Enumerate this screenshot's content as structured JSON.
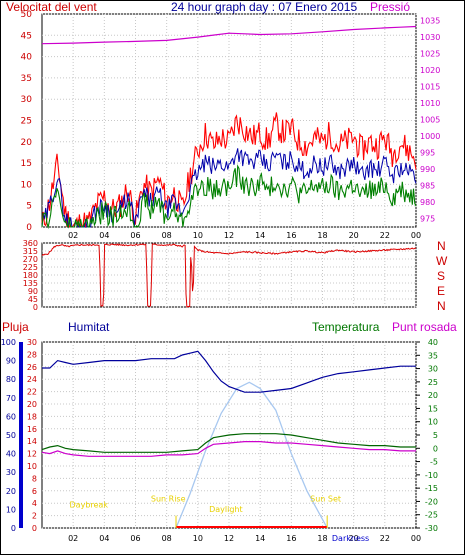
{
  "header": {
    "left_title": "Velocitat del vent",
    "center_title": "24 hour graph day : 07 Enero 2015",
    "right_title": "Pressió"
  },
  "direction_labels": [
    "N",
    "W",
    "S",
    "E",
    "N"
  ],
  "lower_labels": {
    "pluja": "Pluja",
    "humitat": "Humitat",
    "temperatura": "Temperatura",
    "punt_rosada": "Punt rosada"
  },
  "sun_labels": {
    "daybreak": "Daybreak",
    "sunrise": "Sun Rise",
    "daylight": "Daylight",
    "sunset": "Sun Set",
    "darkness": "Darkness"
  },
  "colors": {
    "wind_gust": "#ff0000",
    "wind_avg": "#0000aa",
    "wind_low": "#008000",
    "pressure": "#cc00cc",
    "direction": "#dd0000",
    "humidity": "#00009c",
    "temperature": "#006400",
    "dewpoint": "#cc00cc",
    "solar": "#a8c8f0",
    "rain": "#ff0000",
    "sun_text": "#e8d000"
  },
  "chart_data": [
    {
      "type": "line",
      "name": "wind_and_pressure",
      "x_ticks": [
        "02",
        "04",
        "06",
        "08",
        "10",
        "12",
        "14",
        "16",
        "18",
        "20",
        "22",
        "00"
      ],
      "x_hours": [
        2,
        4,
        6,
        8,
        10,
        12,
        14,
        16,
        18,
        20,
        22,
        24
      ],
      "y_left_ticks": [
        0,
        5,
        10,
        15,
        20,
        25,
        30,
        35,
        40,
        45,
        50
      ],
      "y_left_range": [
        0,
        50
      ],
      "y_right_ticks": [
        975,
        980,
        985,
        990,
        995,
        1000,
        1005,
        1010,
        1015,
        1020,
        1025,
        1030,
        1035
      ],
      "y_right_range": [
        972.5,
        1037
      ],
      "series": [
        {
          "key": "gust",
          "axis": "left",
          "x": [
            0,
            0.5,
            1,
            1.5,
            2,
            2.5,
            3,
            3.5,
            4,
            4.5,
            5,
            5.5,
            6,
            6.5,
            7,
            7.5,
            8,
            8.5,
            9,
            9.5,
            10,
            10.5,
            11,
            11.5,
            12,
            12.5,
            13,
            13.5,
            14,
            14.5,
            15,
            15.5,
            16,
            16.5,
            17,
            17.5,
            18,
            18.5,
            19,
            19.5,
            20,
            20.5,
            21,
            21.5,
            22,
            22.5,
            23,
            23.5,
            24
          ],
          "y": [
            0,
            6,
            15,
            3,
            0,
            1,
            1,
            5,
            7,
            4,
            5,
            9,
            2,
            10,
            8,
            11,
            6,
            8,
            4,
            12,
            18,
            22,
            19,
            21,
            20,
            25,
            23,
            21,
            22,
            20,
            24,
            22,
            23,
            20,
            19,
            21,
            20,
            22,
            19,
            20,
            21,
            18,
            20,
            19,
            21,
            17,
            20,
            18,
            16
          ]
        },
        {
          "key": "avg",
          "axis": "left",
          "x": [
            0,
            0.5,
            1,
            1.5,
            2,
            2.5,
            3,
            3.5,
            4,
            4.5,
            5,
            5.5,
            6,
            6.5,
            7,
            7.5,
            8,
            8.5,
            9,
            9.5,
            10,
            10.5,
            11,
            11.5,
            12,
            12.5,
            13,
            13.5,
            14,
            14.5,
            15,
            15.5,
            16,
            16.5,
            17,
            17.5,
            18,
            18.5,
            19,
            19.5,
            20,
            20.5,
            21,
            21.5,
            22,
            22.5,
            23,
            23.5,
            24
          ],
          "y": [
            0,
            5,
            12,
            2,
            0,
            0,
            0,
            4,
            5,
            3,
            4,
            7,
            1,
            8,
            6,
            8,
            4,
            6,
            3,
            9,
            13,
            15,
            14,
            15,
            14,
            18,
            16,
            15,
            16,
            14,
            17,
            15,
            16,
            14,
            13,
            15,
            14,
            15,
            13,
            14,
            15,
            12,
            14,
            13,
            15,
            12,
            14,
            13,
            12
          ]
        },
        {
          "key": "low",
          "axis": "left",
          "x": [
            0,
            0.5,
            1,
            1.5,
            2,
            2.5,
            3,
            3.5,
            4,
            4.5,
            5,
            5.5,
            6,
            6.5,
            7,
            7.5,
            8,
            8.5,
            9,
            9.5,
            10,
            10.5,
            11,
            11.5,
            12,
            12.5,
            13,
            13.5,
            14,
            14.5,
            15,
            15.5,
            16,
            16.5,
            17,
            17.5,
            18,
            18.5,
            19,
            19.5,
            20,
            20.5,
            21,
            21.5,
            22,
            22.5,
            23,
            23.5,
            24
          ],
          "y": [
            0,
            3,
            9,
            0,
            0,
            0,
            0,
            2,
            4,
            2,
            3,
            5,
            0,
            6,
            4,
            6,
            2,
            4,
            1,
            6,
            9,
            10,
            8,
            10,
            9,
            12,
            10,
            9,
            11,
            8,
            11,
            9,
            10,
            8,
            8,
            10,
            9,
            10,
            8,
            9,
            10,
            7,
            9,
            8,
            10,
            7,
            9,
            8,
            7
          ]
        },
        {
          "key": "pressure",
          "axis": "right",
          "x": [
            0,
            2,
            4,
            6,
            8,
            10,
            11,
            12,
            13,
            14,
            16,
            18,
            20,
            22,
            23,
            24
          ],
          "y": [
            1028.0,
            1028.2,
            1028.5,
            1028.7,
            1029.0,
            1030.0,
            1030.6,
            1031.2,
            1031.0,
            1030.8,
            1031.0,
            1031.6,
            1032.3,
            1032.8,
            1033.0,
            1033.2
          ]
        }
      ]
    },
    {
      "type": "line",
      "name": "wind_direction",
      "y_ticks": [
        0,
        45,
        90,
        135,
        180,
        225,
        270,
        315,
        360
      ],
      "y_range": [
        0,
        360
      ],
      "x": [
        0,
        0.4,
        0.8,
        1.2,
        1.6,
        2,
        2.5,
        3,
        3.5,
        3.7,
        3.75,
        3.95,
        4.0,
        4.5,
        5,
        5.5,
        6,
        6.5,
        6.7,
        6.75,
        7.0,
        7.05,
        7.5,
        8,
        8.5,
        9,
        9.2,
        9.25,
        9.5,
        9.55,
        9.7,
        9.75,
        10,
        10.5,
        11,
        12,
        13,
        14,
        15,
        16,
        17,
        18,
        19,
        20,
        21,
        22,
        23,
        24
      ],
      "y": [
        290,
        300,
        340,
        350,
        340,
        345,
        350,
        348,
        350,
        350,
        5,
        5,
        350,
        352,
        350,
        348,
        350,
        352,
        350,
        5,
        5,
        352,
        350,
        348,
        350,
        340,
        350,
        0,
        0,
        350,
        0,
        340,
        320,
        310,
        305,
        300,
        310,
        305,
        300,
        310,
        315,
        305,
        320,
        310,
        315,
        320,
        325,
        330
      ]
    },
    {
      "type": "line",
      "name": "humidity_temperature",
      "y_left_ticks": [
        0,
        10,
        20,
        30,
        40,
        50,
        60,
        70,
        80,
        90,
        100
      ],
      "y_rain_ticks": [
        0,
        2,
        4,
        6,
        8,
        10,
        12,
        14,
        16,
        18,
        20,
        22,
        24,
        26,
        28,
        30
      ],
      "y_right_ticks": [
        -30,
        -25,
        -20,
        -15,
        -10,
        -5,
        0,
        5,
        10,
        15,
        20,
        25,
        30,
        35,
        40
      ],
      "y_right_range": [
        -30,
        40
      ],
      "series": [
        {
          "key": "humidity",
          "axis": "left",
          "x": [
            0,
            0.5,
            1,
            1.5,
            2,
            3,
            4,
            5,
            6,
            7,
            8,
            8.5,
            9,
            9.5,
            10,
            10.5,
            11,
            11.5,
            12,
            13,
            14,
            15,
            16,
            17,
            18,
            19,
            20,
            21,
            22,
            23,
            24
          ],
          "y": [
            86,
            86,
            90,
            89,
            88,
            89,
            90,
            90,
            90,
            91,
            91,
            91,
            93,
            94,
            95,
            90,
            84,
            79,
            76,
            73,
            73,
            74,
            75,
            78,
            81,
            83,
            84,
            85,
            86,
            87,
            87
          ]
        },
        {
          "key": "temperature",
          "axis": "right",
          "x": [
            0,
            0.5,
            1,
            1.5,
            2,
            3,
            4,
            5,
            6,
            7,
            8,
            9,
            10,
            10.5,
            11,
            12,
            13,
            14,
            15,
            16,
            17,
            18,
            19,
            20,
            21,
            22,
            23,
            24
          ],
          "y": [
            -0.5,
            0.5,
            1,
            0,
            -0.5,
            -1,
            -1.5,
            -1.5,
            -1.5,
            -1.5,
            -1.5,
            -1,
            -0.5,
            2,
            4,
            5,
            5.5,
            5.5,
            5.5,
            5,
            4,
            3,
            2,
            1.5,
            1,
            1,
            0.5,
            0.5
          ]
        },
        {
          "key": "dewpoint",
          "axis": "right",
          "x": [
            0,
            0.5,
            1,
            1.5,
            2,
            3,
            4,
            5,
            6,
            7,
            8,
            9,
            10,
            10.5,
            11,
            12,
            13,
            14,
            15,
            16,
            17,
            18,
            19,
            20,
            21,
            22,
            23,
            24
          ],
          "y": [
            -1.5,
            -2,
            -1,
            -2,
            -2.5,
            -3,
            -3,
            -3,
            -3,
            -3,
            -2.5,
            -2.5,
            -2,
            0,
            1.5,
            2,
            2.5,
            2.5,
            2,
            2,
            1.5,
            1,
            0.5,
            0,
            -0.5,
            -0.5,
            -1,
            -1
          ]
        }
      ]
    },
    {
      "type": "area",
      "name": "solar_and_rain",
      "y_range": [
        0,
        30
      ],
      "solar_x": [
        8.6,
        9.5,
        10.5,
        11.5,
        12.5,
        13.3,
        14,
        15,
        16,
        17,
        18.3
      ],
      "solar_y": [
        0,
        5.5,
        12.5,
        18.5,
        22.5,
        23.5,
        22.5,
        19,
        12,
        6,
        0
      ],
      "rain_mm": 0,
      "sunrise_hour": 8.6,
      "sunset_hour": 18.3
    }
  ]
}
